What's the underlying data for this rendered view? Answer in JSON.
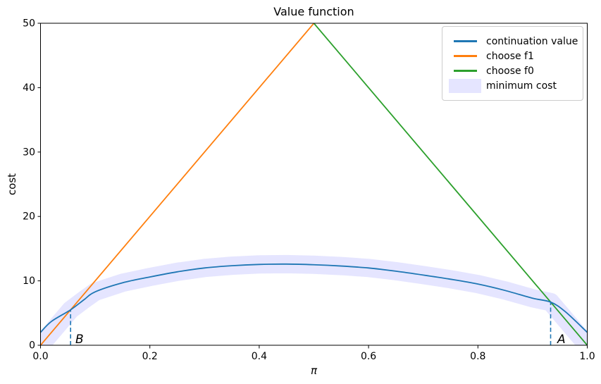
{
  "title": "Value function",
  "axes": {
    "xlabel": "π",
    "ylabel": "cost",
    "x_ticks": [
      "0.0",
      "0.2",
      "0.4",
      "0.6",
      "0.8",
      "1.0"
    ],
    "y_ticks": [
      "0",
      "10",
      "20",
      "30",
      "40",
      "50"
    ]
  },
  "legend": {
    "items": [
      {
        "label": "continuation value",
        "color": "#1f77b4",
        "type": "line"
      },
      {
        "label": "choose f1",
        "color": "#ff7f0e",
        "type": "line"
      },
      {
        "label": "choose f0",
        "color": "#2ca02c",
        "type": "line"
      },
      {
        "label": "minimum cost",
        "color": "rgba(0,0,255,0.10)",
        "type": "patch"
      }
    ]
  },
  "chart_data": {
    "type": "line",
    "title": "Value function",
    "xlabel": "π",
    "ylabel": "cost",
    "xlim": [
      0,
      1
    ],
    "ylim": [
      0,
      50
    ],
    "grid": false,
    "legend_position": "upper right",
    "series": [
      {
        "name": "minimum cost",
        "style": "band",
        "color": "rgba(0,0,255,0.10)",
        "width": 26,
        "smooth": false,
        "x": [
          0.0,
          0.055,
          0.08,
          0.1,
          0.15,
          0.2,
          0.25,
          0.3,
          0.35,
          0.4,
          0.45,
          0.5,
          0.55,
          0.6,
          0.65,
          0.7,
          0.75,
          0.8,
          0.85,
          0.9,
          0.933,
          1.0
        ],
        "y": [
          0.0,
          5.5,
          7.1,
          8.3,
          9.7,
          10.6,
          11.4,
          12.0,
          12.35,
          12.55,
          12.6,
          12.5,
          12.3,
          12.0,
          11.5,
          10.9,
          10.25,
          9.5,
          8.5,
          7.3,
          6.7,
          0.0
        ]
      },
      {
        "name": "choose f1",
        "style": "line",
        "color": "#ff7f0e",
        "width": 1.8,
        "smooth": false,
        "x": [
          0.0,
          0.5
        ],
        "y": [
          0.0,
          50.0
        ]
      },
      {
        "name": "choose f0",
        "style": "line",
        "color": "#2ca02c",
        "width": 1.8,
        "smooth": false,
        "x": [
          0.5,
          1.0
        ],
        "y": [
          50.0,
          0.0
        ]
      },
      {
        "name": "continuation value",
        "style": "line",
        "color": "#1f77b4",
        "width": 1.8,
        "smooth": true,
        "x": [
          0.0,
          0.02,
          0.055,
          0.08,
          0.1,
          0.15,
          0.2,
          0.25,
          0.3,
          0.35,
          0.4,
          0.45,
          0.5,
          0.55,
          0.6,
          0.65,
          0.7,
          0.75,
          0.8,
          0.85,
          0.9,
          0.933,
          0.96,
          1.0
        ],
        "y": [
          2.0,
          3.7,
          5.5,
          7.1,
          8.3,
          9.7,
          10.6,
          11.4,
          12.0,
          12.35,
          12.55,
          12.6,
          12.5,
          12.3,
          12.0,
          11.5,
          10.9,
          10.25,
          9.5,
          8.5,
          7.3,
          6.7,
          5.2,
          2.0
        ]
      }
    ],
    "annotations": [
      {
        "label": "B",
        "x": 0.055,
        "y": 5.5,
        "line_color": "#1f77b4",
        "line_style": "dashed"
      },
      {
        "label": "A",
        "x": 0.933,
        "y": 6.7,
        "line_color": "#1f77b4",
        "line_style": "dashed"
      }
    ]
  }
}
